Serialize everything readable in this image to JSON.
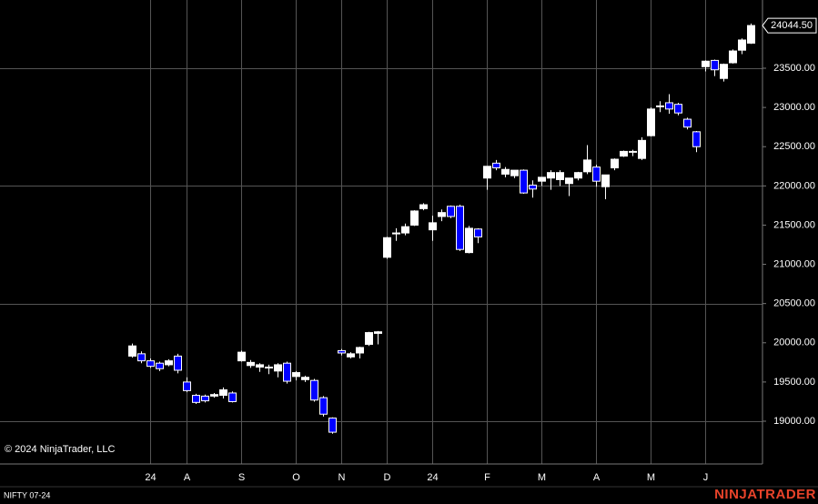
{
  "chart_data": {
    "type": "candlestick",
    "watermark": "© 2024 NinjaTrader, LLC",
    "instrument": "NIFTY 07-24",
    "logo": "NINJATRADER",
    "up_color": "#ffffff",
    "down_color": "#0000ff",
    "grid": true,
    "ylim": [
      18455,
      24370
    ],
    "yticks": [
      {
        "value": 19000,
        "label": "19000.00"
      },
      {
        "value": 19500,
        "label": "19500.00"
      },
      {
        "value": 20000,
        "label": "20000.00"
      },
      {
        "value": 20500,
        "label": "20500.00"
      },
      {
        "value": 21000,
        "label": "21000.00"
      },
      {
        "value": 21500,
        "label": "21500.00"
      },
      {
        "value": 22000,
        "label": "22000.00"
      },
      {
        "value": 22500,
        "label": "22500.00"
      },
      {
        "value": 23000,
        "label": "23000.00"
      },
      {
        "value": 23500,
        "label": "23500.00"
      }
    ],
    "grid_yticks": [
      19000,
      20500,
      22000,
      23500
    ],
    "last_price": {
      "value": 24044.5,
      "label": "24044.50"
    },
    "categories": [
      null,
      null,
      "24",
      null,
      null,
      null,
      "A",
      null,
      null,
      null,
      null,
      null,
      "S",
      null,
      null,
      null,
      null,
      null,
      "O",
      null,
      null,
      null,
      null,
      "N",
      null,
      null,
      null,
      null,
      "D",
      null,
      null,
      null,
      null,
      "24",
      null,
      null,
      null,
      null,
      null,
      "F",
      null,
      null,
      null,
      null,
      null,
      "M",
      null,
      null,
      null,
      null,
      null,
      "A",
      null,
      null,
      null,
      null,
      null,
      "M",
      null,
      null,
      null,
      null,
      null,
      "J",
      null,
      null,
      null,
      null,
      null
    ],
    "open": [
      19830,
      19860,
      19770,
      19740,
      19720,
      19830,
      19500,
      19330,
      19320,
      19320,
      19330,
      19360,
      19770,
      19710,
      19690,
      19680,
      19640,
      19740,
      19570,
      19530,
      19520,
      19300,
      19040,
      19900,
      19820,
      19870,
      19980,
      20120,
      21090,
      21390,
      21400,
      21500,
      21710,
      21440,
      21610,
      21740,
      21740,
      21150,
      21450,
      22100,
      22290,
      22150,
      22130,
      22200,
      22010,
      22060,
      22100,
      22080,
      22030,
      22100,
      22180,
      22240,
      21990,
      22230,
      22380,
      22430,
      22350,
      22640,
      23010,
      23060,
      23040,
      22850,
      22690,
      23520,
      23600,
      23370,
      23570,
      23730,
      23820
    ],
    "high": [
      19990,
      19890,
      19800,
      19760,
      19790,
      19860,
      19560,
      19350,
      19340,
      19360,
      19430,
      19380,
      19900,
      19780,
      19740,
      19720,
      19740,
      19760,
      19640,
      19580,
      19540,
      19320,
      19050,
      19920,
      19880,
      19950,
      20140,
      20150,
      21350,
      21460,
      21520,
      21690,
      21780,
      21620,
      21700,
      21750,
      21760,
      21490,
      21460,
      22250,
      22330,
      22240,
      22200,
      22210,
      22070,
      22110,
      22200,
      22200,
      22100,
      22180,
      22520,
      22270,
      22130,
      22350,
      22450,
      22460,
      22620,
      23000,
      23080,
      23170,
      23060,
      22870,
      22700,
      23600,
      23610,
      23560,
      23740,
      23880,
      24070
    ],
    "low": [
      19810,
      19740,
      19680,
      19640,
      19700,
      19610,
      19370,
      19220,
      19240,
      19300,
      19290,
      19240,
      19760,
      19680,
      19630,
      19600,
      19560,
      19480,
      19520,
      19500,
      19250,
      19060,
      18840,
      19840,
      19800,
      19800,
      19960,
      19980,
      21070,
      21300,
      21370,
      21490,
      21690,
      21300,
      21550,
      21590,
      21170,
      21140,
      21270,
      21950,
      22200,
      22110,
      22100,
      21900,
      21850,
      22000,
      21950,
      22000,
      21870,
      22070,
      22150,
      21990,
      21830,
      22200,
      22370,
      22380,
      22330,
      22630,
      22940,
      22920,
      22900,
      22720,
      22430,
      23460,
      23400,
      23330,
      23560,
      23680,
      23810
    ],
    "close": [
      19960,
      19770,
      19700,
      19670,
      19770,
      19650,
      19390,
      19240,
      19260,
      19340,
      19400,
      19250,
      19880,
      19750,
      19720,
      19690,
      19720,
      19510,
      19620,
      19560,
      19270,
      19090,
      18860,
      19870,
      19860,
      19940,
      20130,
      20140,
      21340,
      21400,
      21480,
      21680,
      21760,
      21530,
      21660,
      21610,
      21190,
      21460,
      21350,
      22250,
      22230,
      22210,
      22200,
      21910,
      21960,
      22110,
      22170,
      22170,
      22100,
      22170,
      22330,
      22060,
      22140,
      22340,
      22440,
      22440,
      22580,
      22980,
      23020,
      22980,
      22930,
      22750,
      22500,
      23590,
      23480,
      23550,
      23720,
      23860,
      24044.5
    ]
  }
}
